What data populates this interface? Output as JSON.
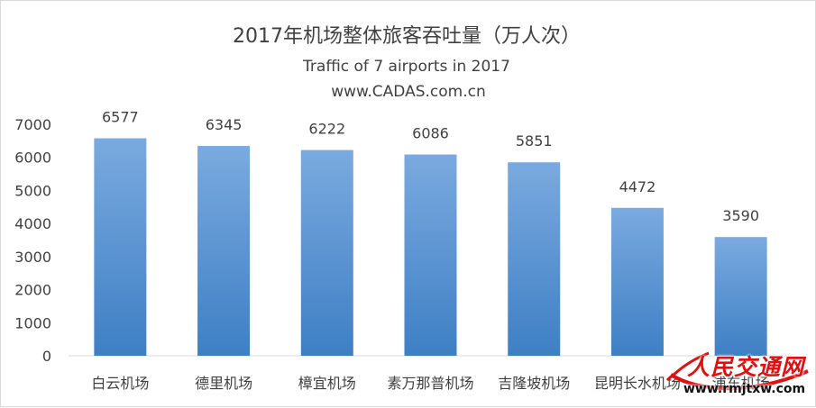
{
  "chart_data": {
    "type": "bar",
    "title": "2017年机场整体旅客吞吐量（万人次）",
    "subtitle": "Traffic of 7 airports in 2017",
    "source": "www.CADAS.com.cn",
    "categories": [
      "白云机场",
      "德里机场",
      "樟宜机场",
      "素万那普机场",
      "吉隆坡机场",
      "昆明长水机场",
      "浦东机场"
    ],
    "values": [
      6577,
      6345,
      6222,
      6086,
      5851,
      4472,
      3590
    ],
    "ylim": [
      0,
      7000
    ],
    "yticks": [
      0,
      1000,
      2000,
      3000,
      4000,
      5000,
      6000,
      7000
    ],
    "grid": false,
    "bar_color_top": "#7aaadf",
    "bar_color_bottom": "#3e7fc4"
  },
  "watermark": {
    "name": "人民交通网",
    "url": "www.rmjtxw.com"
  }
}
